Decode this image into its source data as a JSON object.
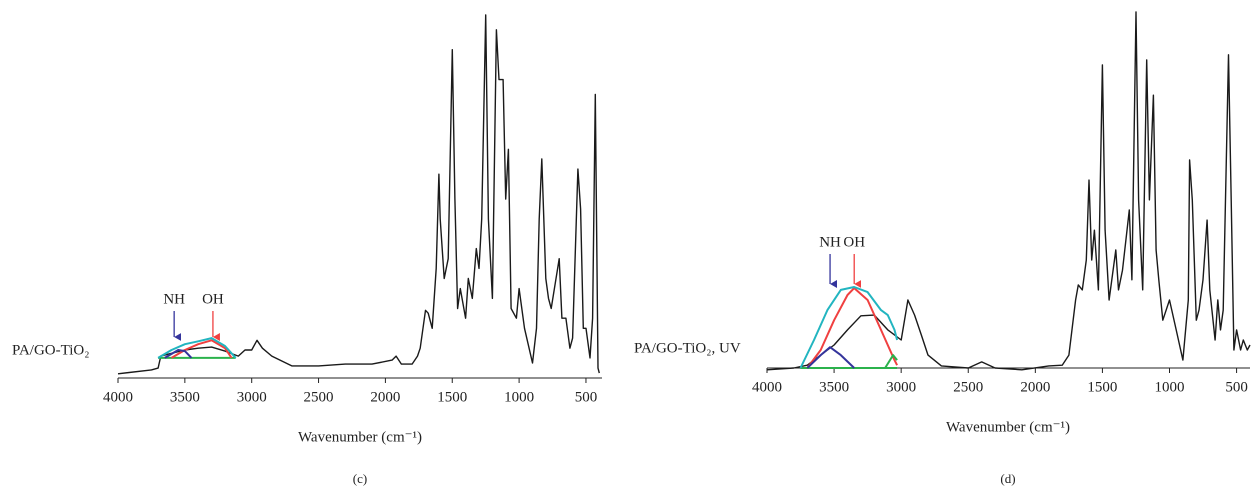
{
  "chart_data": [
    {
      "type": "line",
      "panel": "(c)",
      "xlabel": "Wavenumber (cm⁻¹)",
      "sample": "PA/GO-TiO₂",
      "xlim": [
        4000,
        380
      ],
      "ylim": [
        0,
        100
      ],
      "xticks": [
        4000,
        3500,
        3000,
        2500,
        2000,
        1500,
        1000,
        500
      ],
      "annotations": [
        {
          "text": "NH",
          "x": 3580,
          "color": "#34349c"
        },
        {
          "text": "OH",
          "x": 3290,
          "color": "#f04040"
        }
      ],
      "series": [
        {
          "color": "#1a1a1a",
          "x": [
            4000,
            3750,
            3700,
            3680,
            3600,
            3500,
            3400,
            3300,
            3200,
            3100,
            3050,
            3000,
            2960,
            2920,
            2850,
            2700,
            2500,
            2300,
            2100,
            1950,
            1920,
            1880,
            1800,
            1760,
            1740,
            1700,
            1680,
            1650,
            1620,
            1600,
            1590,
            1560,
            1530,
            1500,
            1480,
            1460,
            1440,
            1400,
            1380,
            1350,
            1320,
            1300,
            1280,
            1250,
            1230,
            1200,
            1170,
            1150,
            1120,
            1100,
            1080,
            1060,
            1020,
            1000,
            960,
            900,
            870,
            850,
            830,
            800,
            780,
            760,
            700,
            680,
            650,
            620,
            600,
            560,
            540,
            520,
            500,
            470,
            450,
            430,
            410,
            400
          ],
          "values": [
            0.6,
            1.7,
            2.2,
            5.5,
            6.3,
            7.2,
            7.7,
            8.0,
            6.9,
            5.5,
            7.2,
            7.2,
            9.9,
            7.7,
            5.5,
            2.8,
            2.8,
            3.3,
            3.3,
            4.4,
            5.5,
            3.3,
            3.3,
            5.5,
            7.7,
            18.2,
            17.4,
            13.2,
            29.8,
            55.9,
            43.5,
            27.0,
            32.5,
            90.4,
            49.0,
            18.7,
            24.2,
            16.0,
            27.0,
            21.5,
            35.3,
            29.8,
            43.5,
            100,
            43.5,
            21.5,
            95.9,
            82.1,
            82.1,
            49.0,
            62.8,
            18.7,
            16.0,
            24.2,
            13.2,
            3.6,
            13.2,
            43.5,
            60.1,
            27.0,
            21.5,
            18.7,
            32.5,
            16.0,
            16.0,
            7.7,
            10.5,
            57.3,
            46.3,
            13.2,
            13.2,
            5.0,
            16.0,
            78.0,
            2.2,
            0.8
          ]
        },
        {
          "color": "#2bb24c",
          "x": [
            3700,
            3120
          ],
          "values": [
            5.0,
            5.0
          ]
        },
        {
          "color": "#f04040",
          "x": [
            3600,
            3500,
            3400,
            3300,
            3200,
            3150
          ],
          "values": [
            5.0,
            7.2,
            8.8,
            9.9,
            7.7,
            5.0
          ]
        },
        {
          "color": "#34349c",
          "x": [
            3650,
            3550,
            3500,
            3450
          ],
          "values": [
            5.0,
            7.2,
            6.9,
            5.0
          ]
        },
        {
          "color": "#22b5c0",
          "x": [
            3700,
            3600,
            3500,
            3400,
            3300,
            3200,
            3120
          ],
          "values": [
            5.0,
            7.2,
            8.8,
            9.6,
            10.5,
            8.3,
            5.0
          ]
        }
      ]
    },
    {
      "type": "line",
      "panel": "(d)",
      "xlabel": "Wavenumber (cm⁻¹)",
      "sample": "PA/GO-TiO₂, UV",
      "xlim": [
        4000,
        400
      ],
      "ylim": [
        0,
        100
      ],
      "xticks": [
        4000,
        3500,
        3000,
        2500,
        2000,
        1500,
        1000,
        500
      ],
      "annotations": [
        {
          "text": "NH",
          "x": 3530,
          "color": "#34349c"
        },
        {
          "text": "OH",
          "x": 3350,
          "color": "#f04040"
        }
      ],
      "series": [
        {
          "color": "#1a1a1a",
          "x": [
            4000,
            3800,
            3700,
            3600,
            3500,
            3400,
            3300,
            3200,
            3100,
            3000,
            2950,
            2900,
            2850,
            2800,
            2700,
            2500,
            2400,
            2300,
            2100,
            1900,
            1800,
            1750,
            1700,
            1680,
            1650,
            1620,
            1600,
            1580,
            1560,
            1530,
            1500,
            1480,
            1450,
            1400,
            1380,
            1350,
            1300,
            1280,
            1250,
            1230,
            1200,
            1170,
            1150,
            1120,
            1100,
            1080,
            1050,
            1000,
            950,
            900,
            860,
            850,
            830,
            800,
            780,
            750,
            720,
            700,
            660,
            640,
            620,
            600,
            560,
            540,
            520,
            500,
            470,
            450,
            420,
            400
          ],
          "values": [
            0.6,
            1.1,
            1.9,
            4.7,
            7.5,
            11.7,
            15.6,
            15.8,
            11.7,
            8.9,
            20.0,
            15.8,
            10.3,
            4.7,
            1.7,
            1.1,
            2.8,
            1.1,
            0.6,
            1.7,
            1.9,
            4.7,
            20.0,
            24.2,
            22.8,
            31.1,
            53.3,
            31.1,
            39.4,
            22.8,
            85.3,
            39.4,
            20.0,
            33.9,
            22.8,
            28.3,
            45.0,
            25.6,
            100,
            47.8,
            22.8,
            86.7,
            47.8,
            76.9,
            33.9,
            25.6,
            14.4,
            20.0,
            11.7,
            3.3,
            20.0,
            58.9,
            47.8,
            14.4,
            17.2,
            25.6,
            42.2,
            22.8,
            8.9,
            20.0,
            11.7,
            17.2,
            88.1,
            47.8,
            6.1,
            11.7,
            6.1,
            8.9,
            6.1,
            7.5
          ]
        },
        {
          "color": "#2bb24c",
          "x": [
            3750,
            3030
          ],
          "values": [
            1.1,
            1.1
          ]
        },
        {
          "color": "#f04040",
          "x": [
            3700,
            3600,
            3500,
            3400,
            3350,
            3250,
            3150,
            3050,
            3030
          ],
          "values": [
            1.1,
            6.1,
            14.4,
            21.4,
            23.3,
            20.0,
            11.7,
            3.3,
            1.9
          ]
        },
        {
          "color": "#34349c",
          "x": [
            3700,
            3600,
            3530,
            3450,
            3350
          ],
          "values": [
            1.1,
            4.7,
            6.9,
            4.7,
            1.1
          ]
        },
        {
          "color": "#2bb24c",
          "x": [
            3120,
            3060,
            3030
          ],
          "values": [
            1.1,
            4.7,
            3.3
          ]
        },
        {
          "color": "#22b5c0",
          "x": [
            3750,
            3650,
            3550,
            3450,
            3350,
            3250,
            3150,
            3100,
            3050,
            3030
          ],
          "values": [
            1.1,
            8.9,
            17.2,
            22.8,
            23.6,
            22.2,
            17.2,
            15.8,
            11.7,
            8.9
          ]
        }
      ]
    }
  ]
}
